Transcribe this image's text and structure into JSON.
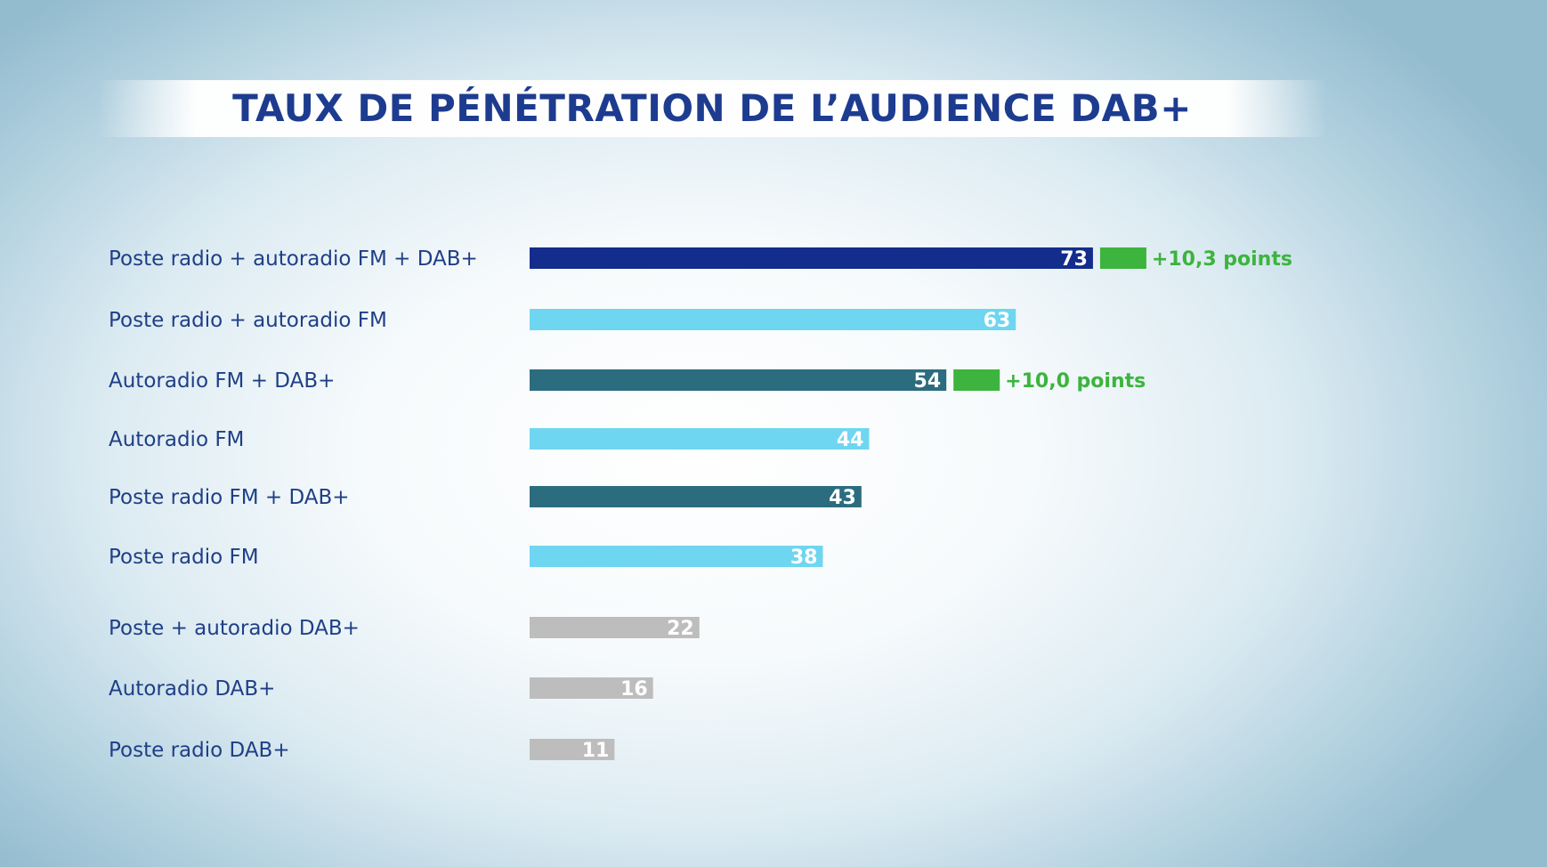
{
  "chart_data": {
    "type": "bar",
    "orientation": "horizontal",
    "title": "TAUX DE PÉNÉTRATION DE L’AUDIENCE DAB+",
    "xlim": [
      0,
      100
    ],
    "grid": false,
    "categories": [
      "Poste radio + autoradio FM + DAB+",
      "Poste radio + autoradio FM",
      "Autoradio FM + DAB+",
      "Autoradio FM",
      "Poste radio FM +  DAB+",
      "Poste radio FM",
      "Poste + autoradio DAB+",
      "Autoradio DAB+",
      "Poste radio DAB+"
    ],
    "values": [
      73,
      63,
      54,
      44,
      43,
      38,
      22,
      16,
      11
    ],
    "colors": [
      "#132d8c",
      "#6ed6f0",
      "#2c6c7f",
      "#6ed6f0",
      "#2c6c7f",
      "#6ed6f0",
      "#bdbdbd",
      "#bdbdbd",
      "#bdbdbd"
    ],
    "annotations": [
      {
        "category_index": 0,
        "text": "+10,3 points",
        "color": "#3db43d"
      },
      {
        "category_index": 2,
        "text": "+10,0 points",
        "color": "#3db43d"
      }
    ]
  }
}
